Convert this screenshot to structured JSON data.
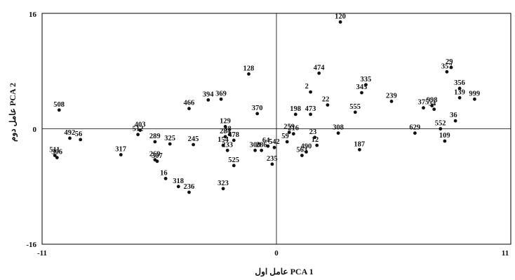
{
  "chart_data": {
    "type": "scatter",
    "xlabel": "عامل اول  PCA 1",
    "ylabel": "عامل دوم  PCA 2",
    "xlim": [
      -11,
      11
    ],
    "ylim": [
      -16,
      16
    ],
    "xticks": [
      "-11",
      "0",
      "11"
    ],
    "yticks": [
      "16",
      "0",
      "-16"
    ],
    "grid": false,
    "reference_lines": {
      "x": 0,
      "y": 0
    },
    "point_color": "#111111",
    "points": [
      {
        "label": "120",
        "x": 3.0,
        "y": 14.8
      },
      {
        "label": "508",
        "x": -10.2,
        "y": 2.6
      },
      {
        "label": "492",
        "x": -9.7,
        "y": -1.3
      },
      {
        "label": "56",
        "x": -9.2,
        "y": -1.5
      },
      {
        "label": "511",
        "x": -10.4,
        "y": -3.7
      },
      {
        "label": "306",
        "x": -10.3,
        "y": -4.0
      },
      {
        "label": "317",
        "x": -7.3,
        "y": -3.6
      },
      {
        "label": "403",
        "x": -6.4,
        "y": -0.2
      },
      {
        "label": "512",
        "x": -6.5,
        "y": -0.8
      },
      {
        "label": "289",
        "x": -5.7,
        "y": -1.8
      },
      {
        "label": "325",
        "x": -5.0,
        "y": -2.1
      },
      {
        "label": "269",
        "x": -5.7,
        "y": -4.3
      },
      {
        "label": "307",
        "x": -5.6,
        "y": -4.5
      },
      {
        "label": "16",
        "x": -5.2,
        "y": -6.9
      },
      {
        "label": "318",
        "x": -4.6,
        "y": -8.0
      },
      {
        "label": "236",
        "x": -4.1,
        "y": -8.8
      },
      {
        "label": "466",
        "x": -4.1,
        "y": 2.8
      },
      {
        "label": "245",
        "x": -3.9,
        "y": -2.2
      },
      {
        "label": "394",
        "x": -3.2,
        "y": 4.0
      },
      {
        "label": "369",
        "x": -2.6,
        "y": 4.1
      },
      {
        "label": "128",
        "x": -1.3,
        "y": 7.6
      },
      {
        "label": "129",
        "x": -2.4,
        "y": 0.3
      },
      {
        "label": "38",
        "x": -2.2,
        "y": -0.8
      },
      {
        "label": "284",
        "x": -2.4,
        "y": -1.1
      },
      {
        "label": "478",
        "x": -2.0,
        "y": -1.6
      },
      {
        "label": "154",
        "x": -2.5,
        "y": -2.3
      },
      {
        "label": "233",
        "x": -2.3,
        "y": -3.0
      },
      {
        "label": "525",
        "x": -2.0,
        "y": -5.1
      },
      {
        "label": "323",
        "x": -2.5,
        "y": -8.3
      },
      {
        "label": "370",
        "x": -0.9,
        "y": 2.1
      },
      {
        "label": "300",
        "x": -1.0,
        "y": -3.0
      },
      {
        "label": "286",
        "x": -0.7,
        "y": -3.0
      },
      {
        "label": "64",
        "x": -0.4,
        "y": -2.4
      },
      {
        "label": "235",
        "x": -0.2,
        "y": -4.9
      },
      {
        "label": "542",
        "x": -0.1,
        "y": -2.6
      },
      {
        "label": "259",
        "x": 0.6,
        "y": -0.5
      },
      {
        "label": "216",
        "x": 0.8,
        "y": -0.7
      },
      {
        "label": "59",
        "x": 0.5,
        "y": -1.8
      },
      {
        "label": "198",
        "x": 0.9,
        "y": 2.0
      },
      {
        "label": "2",
        "x": 1.6,
        "y": 5.1
      },
      {
        "label": "474",
        "x": 2.0,
        "y": 7.7
      },
      {
        "label": "473",
        "x": 1.6,
        "y": 2.0
      },
      {
        "label": "22",
        "x": 2.4,
        "y": 3.3
      },
      {
        "label": "23",
        "x": 1.8,
        "y": -1.2
      },
      {
        "label": "490",
        "x": 1.4,
        "y": -3.2
      },
      {
        "label": "563",
        "x": 1.2,
        "y": -3.7
      },
      {
        "label": "12",
        "x": 1.9,
        "y": -2.3
      },
      {
        "label": "308",
        "x": 2.9,
        "y": -0.6
      },
      {
        "label": "187",
        "x": 3.9,
        "y": -2.9
      },
      {
        "label": "555",
        "x": 3.7,
        "y": 2.3
      },
      {
        "label": "345",
        "x": 4.0,
        "y": 5.0
      },
      {
        "label": "335",
        "x": 4.2,
        "y": 6.1
      },
      {
        "label": "239",
        "x": 5.4,
        "y": 3.8
      },
      {
        "label": "375",
        "x": 6.9,
        "y": 2.9
      },
      {
        "label": "998",
        "x": 7.3,
        "y": 3.2
      },
      {
        "label": "34",
        "x": 7.4,
        "y": 2.7
      },
      {
        "label": "629",
        "x": 6.5,
        "y": -0.6
      },
      {
        "label": "357",
        "x": 8.0,
        "y": 7.9
      },
      {
        "label": "29",
        "x": 8.2,
        "y": 8.5
      },
      {
        "label": "356",
        "x": 8.6,
        "y": 5.6
      },
      {
        "label": "139",
        "x": 8.6,
        "y": 4.3
      },
      {
        "label": "999",
        "x": 9.3,
        "y": 4.1
      },
      {
        "label": "36",
        "x": 8.4,
        "y": 1.1
      },
      {
        "label": "552",
        "x": 7.7,
        "y": 0.0
      },
      {
        "label": "109",
        "x": 7.9,
        "y": -1.7
      }
    ]
  }
}
